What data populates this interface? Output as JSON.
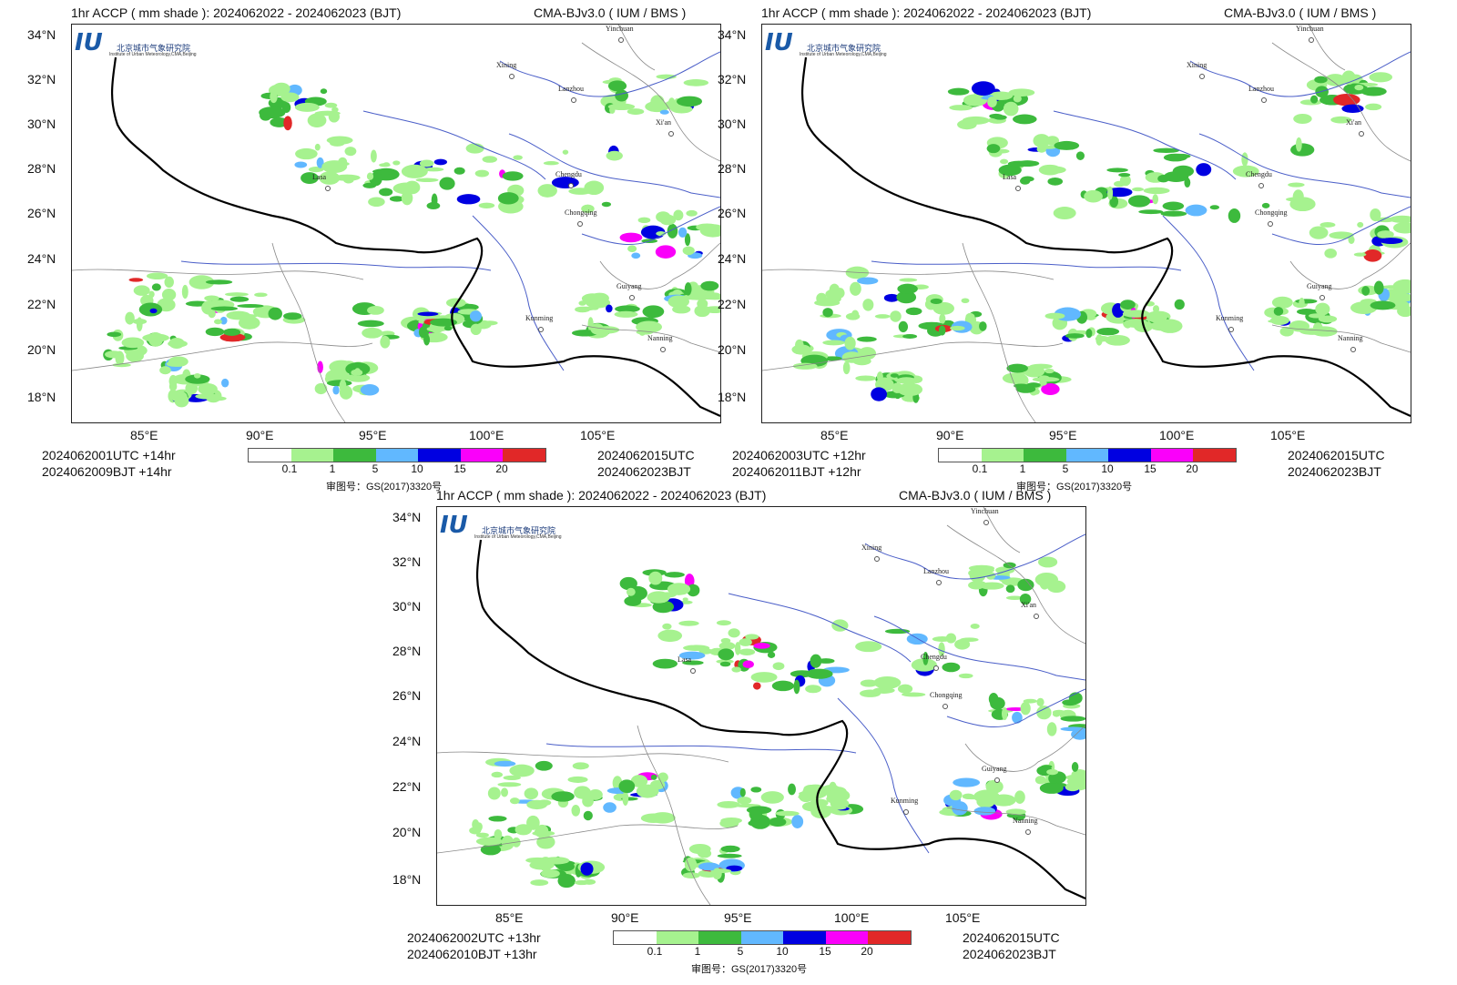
{
  "header": {
    "title_left": "1hr ACCP ( mm shade ): 2024062022 - 2024062023 (BJT)",
    "title_right": "CMA-BJv3.0 ( IUM / BMS )"
  },
  "logo": {
    "mark": "IU",
    "org_cn": "北京城市气象研究院",
    "org_en": "Institute of Urban Meteorology,CMA,Beijing"
  },
  "lat_ticks": [
    "34°N",
    "32°N",
    "30°N",
    "28°N",
    "26°N",
    "24°N",
    "22°N",
    "20°N",
    "18°N"
  ],
  "lon_ticks": [
    "85°E",
    "90°E",
    "95°E",
    "100°E",
    "105°E"
  ],
  "cities": [
    {
      "name": "Yinchuan"
    },
    {
      "name": "Xining"
    },
    {
      "name": "Lanzhou"
    },
    {
      "name": "Xi'an"
    },
    {
      "name": "Lasa"
    },
    {
      "name": "Chengdu"
    },
    {
      "name": "Chongqing"
    },
    {
      "name": "Guiyang"
    },
    {
      "name": "Kunming"
    },
    {
      "name": "Nanning"
    }
  ],
  "legend": {
    "colors": [
      "#ffffff",
      "#a6f28f",
      "#3dba3d",
      "#61b8ff",
      "#0000e1",
      "#fa00fa",
      "#e12828"
    ],
    "ticks": [
      "0.1",
      "1",
      "5",
      "10",
      "15",
      "20"
    ]
  },
  "approval": "审图号：GS(2017)3320号",
  "panels": [
    {
      "init_utc": "2024062001UTC  +14hr",
      "init_bjt": "2024062009BJT   +14hr",
      "valid_utc": "2024062015UTC",
      "valid_bjt": "2024062023BJT"
    },
    {
      "init_utc": "2024062003UTC  +12hr",
      "init_bjt": "2024062011BJT   +12hr",
      "valid_utc": "2024062015UTC",
      "valid_bjt": "2024062023BJT"
    },
    {
      "init_utc": "2024062002UTC  +13hr",
      "init_bjt": "2024062010BJT   +13hr",
      "valid_utc": "2024062015UTC",
      "valid_bjt": "2024062023BJT"
    }
  ]
}
